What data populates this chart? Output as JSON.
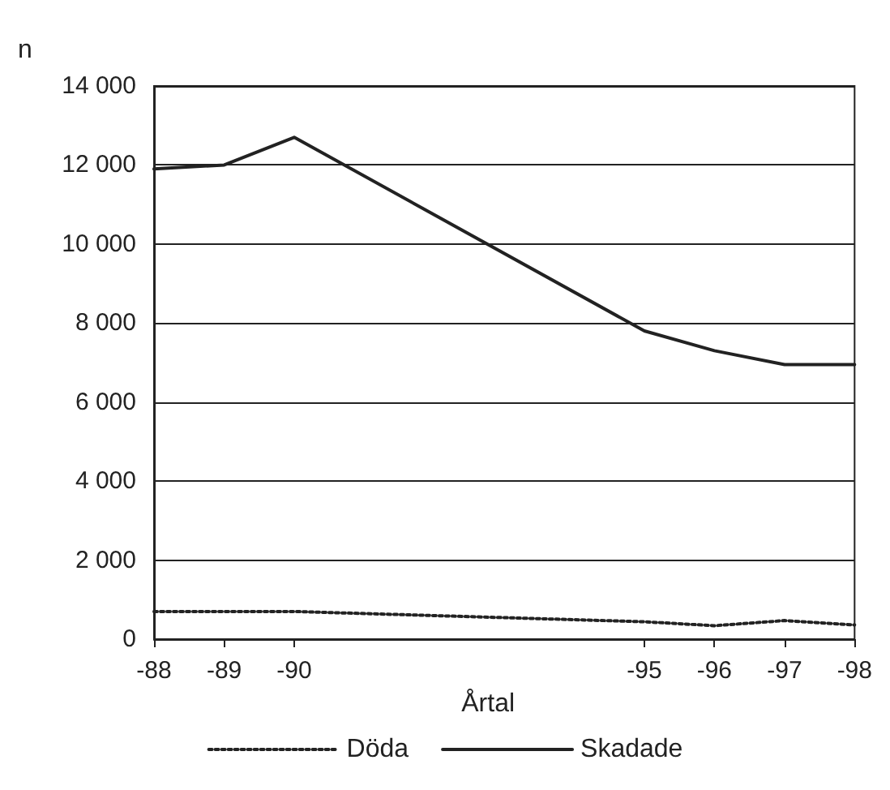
{
  "chart_data": {
    "type": "line",
    "ylabel": "n",
    "xlabel": "Årtal",
    "x": [
      "1988",
      "1989",
      "1990",
      "1995",
      "1996",
      "1997",
      "1998"
    ],
    "series": [
      {
        "name": "Döda",
        "color": "#222222",
        "line_style": "dotted",
        "values": [
          700,
          700,
          700,
          440,
          340,
          470,
          360
        ]
      },
      {
        "name": "Skadade",
        "color": "#222222",
        "line_style": "solid",
        "values": [
          11900,
          12000,
          12700,
          7800,
          7300,
          6950,
          6950
        ]
      }
    ],
    "xlim": [
      "1988",
      "1998"
    ],
    "xticks": [
      {
        "value": "1988",
        "label": "-88"
      },
      {
        "value": "1989",
        "label": "-89"
      },
      {
        "value": "1990",
        "label": "-90"
      },
      {
        "value": "1995",
        "label": "-95"
      },
      {
        "value": "1996",
        "label": "-96"
      },
      {
        "value": "1997",
        "label": "-97"
      },
      {
        "value": "1998",
        "label": "-98"
      }
    ],
    "ylim": [
      0,
      14000
    ],
    "yticks": [
      {
        "value": 0,
        "label": "0"
      },
      {
        "value": 2000,
        "label": "2 000"
      },
      {
        "value": 4000,
        "label": "4 000"
      },
      {
        "value": 6000,
        "label": "6 000"
      },
      {
        "value": 8000,
        "label": "8 000"
      },
      {
        "value": 10000,
        "label": "10 000"
      },
      {
        "value": 12000,
        "label": "12 000"
      },
      {
        "value": 14000,
        "label": "14 000"
      }
    ],
    "grid": "y",
    "legend": "bottom",
    "marker": "none"
  }
}
